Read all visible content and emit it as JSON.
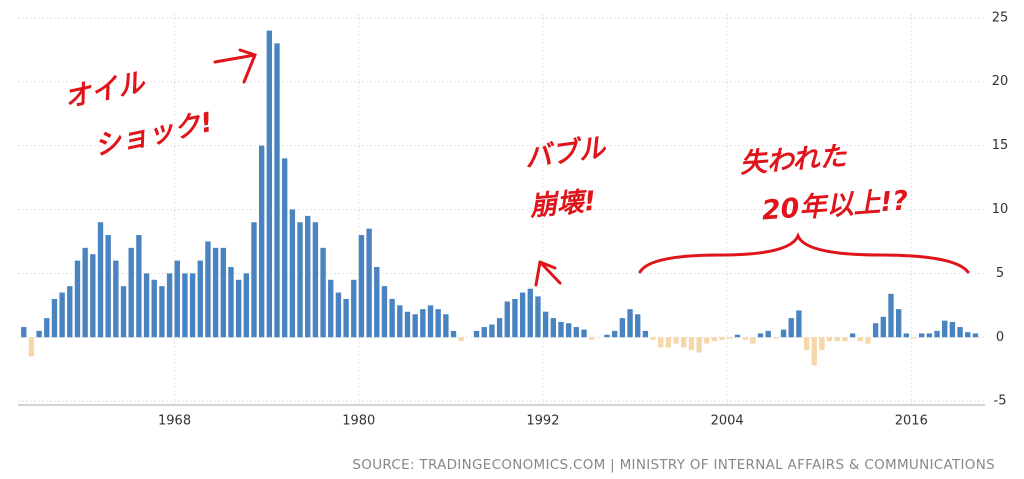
{
  "chart_data": {
    "type": "bar",
    "x": [
      1958,
      1958.5,
      1959,
      1959.5,
      1960,
      1960.5,
      1961,
      1961.5,
      1962,
      1962.5,
      1963,
      1963.5,
      1964,
      1964.5,
      1965,
      1965.5,
      1966,
      1966.5,
      1967,
      1967.5,
      1968,
      1968.5,
      1969,
      1969.5,
      1970,
      1970.5,
      1971,
      1971.5,
      1972,
      1972.5,
      1973,
      1973.5,
      1974,
      1974.5,
      1975,
      1975.5,
      1976,
      1976.5,
      1977,
      1977.5,
      1978,
      1978.5,
      1979,
      1979.5,
      1980,
      1980.5,
      1981,
      1981.5,
      1982,
      1982.5,
      1983,
      1983.5,
      1984,
      1984.5,
      1985,
      1985.5,
      1986,
      1986.5,
      1987,
      1987.5,
      1988,
      1988.5,
      1989,
      1989.5,
      1990,
      1990.5,
      1991,
      1991.5,
      1992,
      1992.5,
      1993,
      1993.5,
      1994,
      1994.5,
      1995,
      1995.5,
      1996,
      1996.5,
      1997,
      1997.5,
      1998,
      1998.5,
      1999,
      1999.5,
      2000,
      2000.5,
      2001,
      2001.5,
      2002,
      2002.5,
      2003,
      2003.5,
      2004,
      2004.5,
      2005,
      2005.5,
      2006,
      2006.5,
      2007,
      2007.5,
      2008,
      2008.5,
      2009,
      2009.5,
      2010,
      2010.5,
      2011,
      2011.5,
      2012,
      2012.5,
      2013,
      2013.5,
      2014,
      2014.5,
      2015,
      2015.5,
      2016,
      2016.5,
      2017,
      2017.5,
      2018,
      2018.5,
      2019,
      2019.5,
      2020,
      2020.5
    ],
    "values": [
      0.8,
      -1.5,
      0.5,
      1.5,
      3,
      3.5,
      4,
      6,
      7,
      6.5,
      9,
      8,
      6,
      4,
      7,
      8,
      5,
      4.5,
      4,
      5,
      6,
      5,
      5,
      6,
      7.5,
      7,
      7,
      5.5,
      4.5,
      5,
      9,
      15,
      24,
      23,
      14,
      10,
      9,
      9.5,
      9,
      7,
      4.5,
      3.5,
      3,
      4.5,
      8,
      8.5,
      5.5,
      4,
      3,
      2.5,
      2,
      1.8,
      2.2,
      2.5,
      2.2,
      1.8,
      0.5,
      -0.3,
      0,
      0.5,
      0.8,
      1,
      1.5,
      2.8,
      3,
      3.5,
      3.8,
      3.2,
      2,
      1.5,
      1.2,
      1.1,
      0.8,
      0.6,
      -0.2,
      0,
      0.2,
      0.5,
      1.5,
      2.2,
      1.8,
      0.5,
      -0.2,
      -0.8,
      -0.8,
      -0.5,
      -0.8,
      -1,
      -1.2,
      -0.5,
      -0.3,
      -0.2,
      -0.1,
      0.2,
      -0.2,
      -0.5,
      0.3,
      0.5,
      -0.1,
      0.6,
      1.5,
      2.1,
      -1,
      -2.2,
      -1,
      -0.3,
      -0.3,
      -0.3,
      0.3,
      -0.3,
      -0.5,
      1.1,
      1.6,
      3.4,
      2.2,
      0.3,
      -0.1,
      0.3,
      0.3,
      0.5,
      1.3,
      1.2,
      0.8,
      0.4,
      0.3,
      0
    ],
    "color": "#4a84c0",
    "negative_color": "#f6d7a9",
    "xlim": [
      1957.8,
      2020.8
    ],
    "xticks": [
      1968,
      1980,
      1992,
      2004,
      2016
    ],
    "ylim": [
      -5.3,
      25.3
    ],
    "yticks": [
      -5,
      0,
      5,
      10,
      15,
      20,
      25
    ],
    "grid": true,
    "annotations": [
      "オイル",
      "ショック!",
      "バブル",
      "崩壊!",
      "失われた",
      "20年以上!?"
    ],
    "source": "SOURCE: TRADINGECONOMICS.COM | MINISTRY OF INTERNAL AFFAIRS & COMMUNICATIONS"
  }
}
